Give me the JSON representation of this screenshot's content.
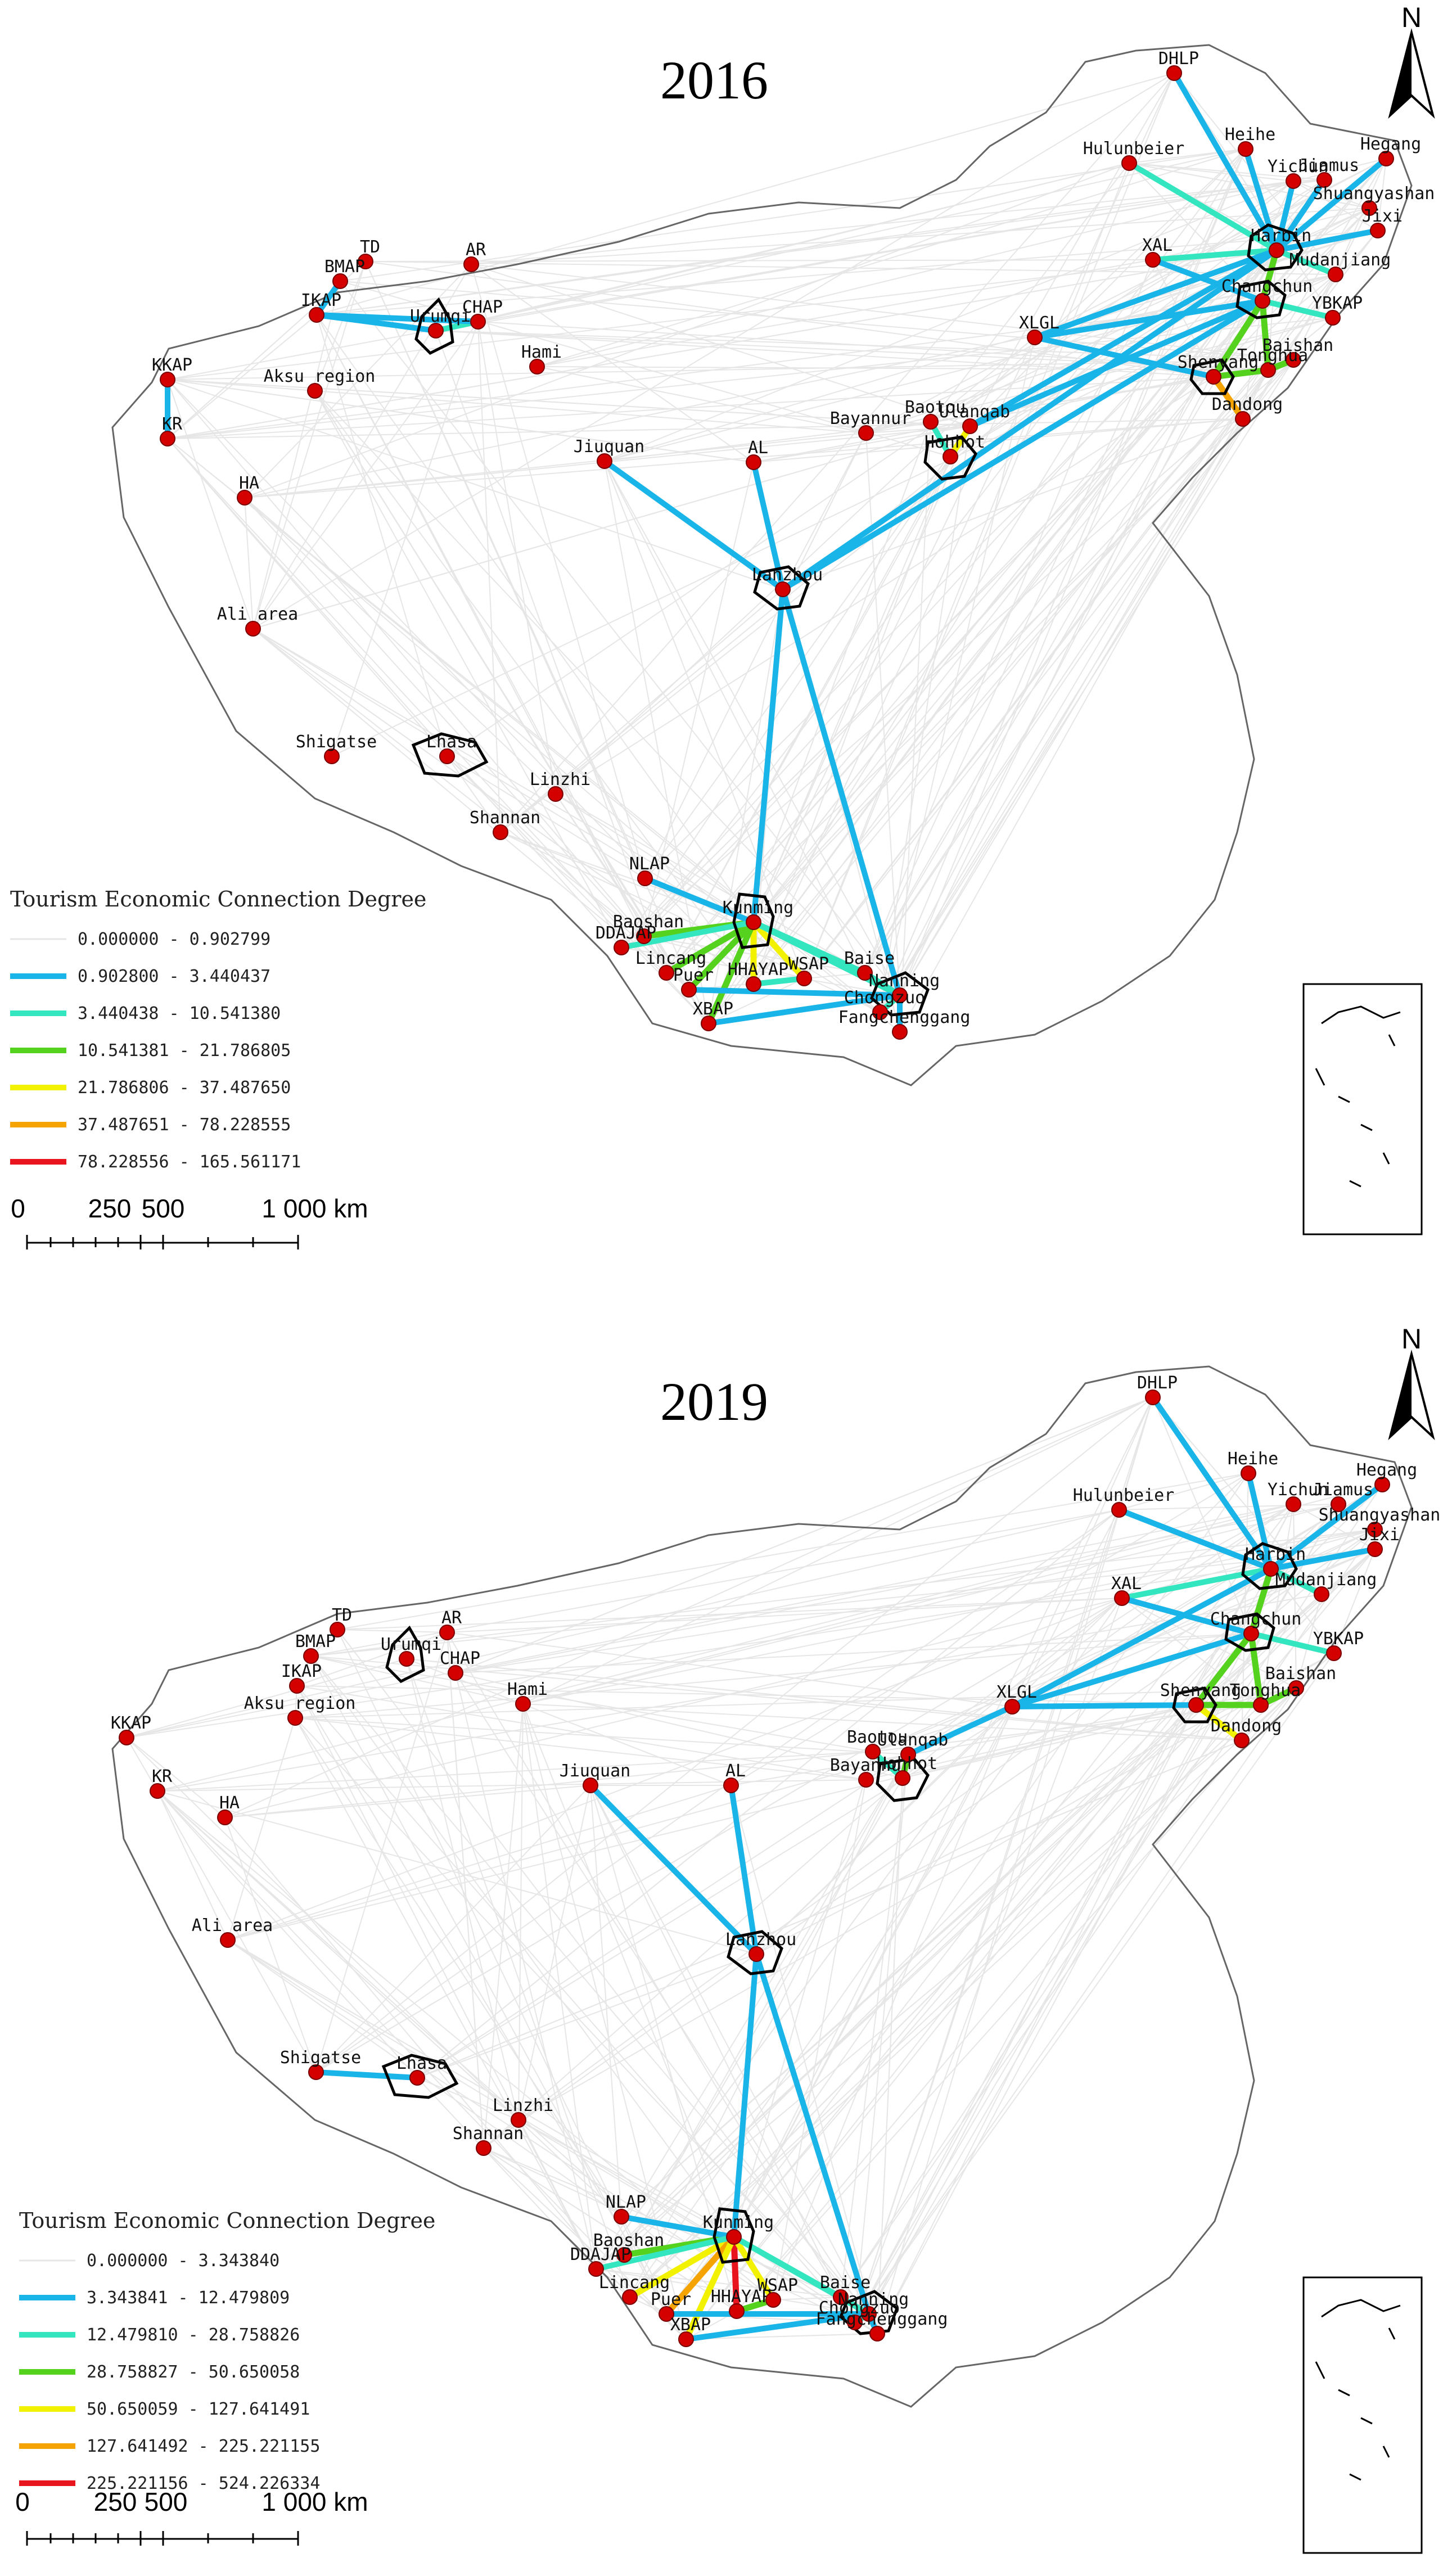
{
  "panels": [
    {
      "year": "2016",
      "north": "N",
      "legend_title": "Tourism Economic Connection Degree",
      "classes": [
        {
          "range": "0.000000 - 0.902799",
          "color": "#e6e6e6"
        },
        {
          "range": "0.902800 - 3.440437",
          "color": "#19b4e8"
        },
        {
          "range": "3.440438 - 10.541380",
          "color": "#33e6c0"
        },
        {
          "range": "10.541381 - 21.786805",
          "color": "#55d21e"
        },
        {
          "range": "21.786806 - 37.487650",
          "color": "#f2f200"
        },
        {
          "range": "37.487651 - 78.228555",
          "color": "#f5a300"
        },
        {
          "range": "78.228556 - 165.561171",
          "color": "#e8141e"
        }
      ],
      "scale": {
        "ticks": [
          "0",
          "250",
          "500",
          "1 000 km"
        ]
      },
      "cities": [
        {
          "name": "DHLP"
        },
        {
          "name": "Heihe"
        },
        {
          "name": "Hegang"
        },
        {
          "name": "Hulunbeier"
        },
        {
          "name": "Yichun"
        },
        {
          "name": "Jiamus"
        },
        {
          "name": "Shuangyashan"
        },
        {
          "name": "Jixi"
        },
        {
          "name": "Harbin"
        },
        {
          "name": "XAL"
        },
        {
          "name": "Mudanjiang"
        },
        {
          "name": "Changchun"
        },
        {
          "name": "YBKAP"
        },
        {
          "name": "XLGL"
        },
        {
          "name": "Baishan"
        },
        {
          "name": "Shenyang"
        },
        {
          "name": "Tonghua"
        },
        {
          "name": "Dandong"
        },
        {
          "name": "Baotou"
        },
        {
          "name": "Ulanqab"
        },
        {
          "name": "Bayannur"
        },
        {
          "name": "Hohhot"
        },
        {
          "name": "AL"
        },
        {
          "name": "Jiuquan"
        },
        {
          "name": "Lanzhou"
        },
        {
          "name": "Hami"
        },
        {
          "name": "TD"
        },
        {
          "name": "AR"
        },
        {
          "name": "BMAP"
        },
        {
          "name": "IKAP"
        },
        {
          "name": "Urumqi"
        },
        {
          "name": "CHAP"
        },
        {
          "name": "KKAP"
        },
        {
          "name": "KR"
        },
        {
          "name": "Aksu region"
        },
        {
          "name": "HA"
        },
        {
          "name": "Ali area"
        },
        {
          "name": "Shigatse"
        },
        {
          "name": "Lhasa"
        },
        {
          "name": "Linzhi"
        },
        {
          "name": "Shannan"
        },
        {
          "name": "NLAP"
        },
        {
          "name": "Kunming"
        },
        {
          "name": "Baoshan"
        },
        {
          "name": "DDAJAP"
        },
        {
          "name": "Lincang"
        },
        {
          "name": "Puer"
        },
        {
          "name": "HHAYAP"
        },
        {
          "name": "WSAP"
        },
        {
          "name": "XBAP"
        },
        {
          "name": "Baise"
        },
        {
          "name": "Nanning"
        },
        {
          "name": "Chongzuo"
        },
        {
          "name": "Fangchenggang"
        }
      ]
    },
    {
      "year": "2019",
      "north": "N",
      "legend_title": "Tourism Economic Connection Degree",
      "classes": [
        {
          "range": "0.000000 - 3.343840",
          "color": "#e6e6e6"
        },
        {
          "range": "3.343841 - 12.479809",
          "color": "#19b4e8"
        },
        {
          "range": "12.479810 - 28.758826",
          "color": "#33e6c0"
        },
        {
          "range": "28.758827 - 50.650058",
          "color": "#55d21e"
        },
        {
          "range": "50.650059 - 127.641491",
          "color": "#f2f200"
        },
        {
          "range": "127.641492 - 225.221155",
          "color": "#f5a300"
        },
        {
          "range": "225.221156 - 524.226334",
          "color": "#e8141e"
        }
      ],
      "scale": {
        "ticks": [
          "0",
          "250",
          "500",
          "1 000 km"
        ]
      },
      "cities": [
        {
          "name": "DHLP"
        },
        {
          "name": "Heihe"
        },
        {
          "name": "Hegang"
        },
        {
          "name": "Hulunbeier"
        },
        {
          "name": "Yichun"
        },
        {
          "name": "Jiamus"
        },
        {
          "name": "Shuangyashan"
        },
        {
          "name": "Jixi"
        },
        {
          "name": "Harbin"
        },
        {
          "name": "XAL"
        },
        {
          "name": "Mudanjiang"
        },
        {
          "name": "Changchun"
        },
        {
          "name": "YBKAP"
        },
        {
          "name": "XLGL"
        },
        {
          "name": "Baishan"
        },
        {
          "name": "Shenyang"
        },
        {
          "name": "Tonghua"
        },
        {
          "name": "Dandong"
        },
        {
          "name": "Baotou"
        },
        {
          "name": "Ulanqab"
        },
        {
          "name": "Bayannur"
        },
        {
          "name": "Hohhot"
        },
        {
          "name": "AL"
        },
        {
          "name": "Jiuquan"
        },
        {
          "name": "Lanzhou"
        },
        {
          "name": "Hami"
        },
        {
          "name": "TD"
        },
        {
          "name": "AR"
        },
        {
          "name": "BMAP"
        },
        {
          "name": "IKAP"
        },
        {
          "name": "Urumqi"
        },
        {
          "name": "CHAP"
        },
        {
          "name": "KKAP"
        },
        {
          "name": "KR"
        },
        {
          "name": "Aksu region"
        },
        {
          "name": "HA"
        },
        {
          "name": "Ali area"
        },
        {
          "name": "Shigatse"
        },
        {
          "name": "Lhasa"
        },
        {
          "name": "Linzhi"
        },
        {
          "name": "Shannan"
        },
        {
          "name": "NLAP"
        },
        {
          "name": "Kunming"
        },
        {
          "name": "Baoshan"
        },
        {
          "name": "DDAJAP"
        },
        {
          "name": "Lincang"
        },
        {
          "name": "Puer"
        },
        {
          "name": "HHAYAP"
        },
        {
          "name": "WSAP"
        },
        {
          "name": "XBAP"
        },
        {
          "name": "Baise"
        },
        {
          "name": "Nanning"
        },
        {
          "name": "Chongzuo"
        },
        {
          "name": "Fangchenggang"
        }
      ],
      "links": [
        {
          "from": "Shigatse",
          "to": "Lhasa",
          "class": 1
        }
      ]
    }
  ]
}
